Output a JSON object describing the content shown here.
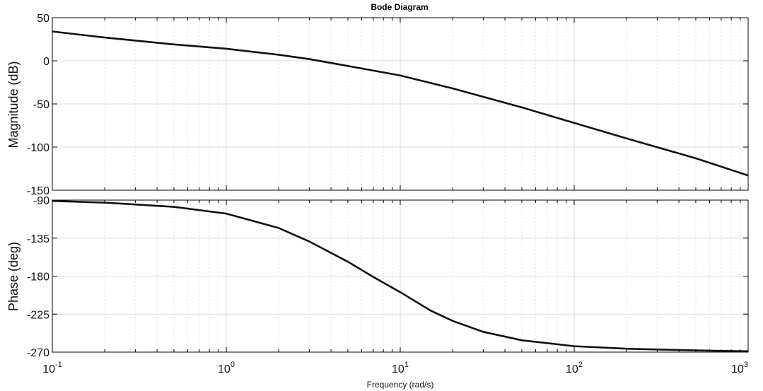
{
  "chart_data": [
    {
      "type": "line",
      "title": "Bode Diagram",
      "ylabel": "Magnitude (dB)",
      "xscale": "log",
      "xlim": [
        0.1,
        1000
      ],
      "ylim": [
        -150,
        50
      ],
      "yticks": [
        "50",
        "0",
        "-50",
        "-100",
        "-150"
      ],
      "grid": true,
      "series": [
        {
          "x": [
            0.1,
            0.2,
            0.5,
            1,
            2,
            3,
            5,
            10,
            20,
            50,
            100,
            200,
            500,
            1000
          ],
          "y": [
            34,
            27,
            19,
            14,
            7,
            2,
            -6,
            -17,
            -32,
            -54,
            -72,
            -90,
            -113,
            -133
          ]
        }
      ]
    },
    {
      "type": "line",
      "ylabel": "Phase (deg)",
      "xlabel": "Frequency  (rad/s)",
      "xscale": "log",
      "xlim": [
        0.1,
        1000
      ],
      "ylim": [
        -270,
        -90
      ],
      "yticks": [
        "-90",
        "-135",
        "-180",
        "-225",
        "-270"
      ],
      "xticks": [
        {
          "base": "10",
          "exp": "-1"
        },
        {
          "base": "10",
          "exp": "0"
        },
        {
          "base": "10",
          "exp": "1"
        },
        {
          "base": "10",
          "exp": "2"
        },
        {
          "base": "10",
          "exp": "3"
        }
      ],
      "grid": true,
      "series": [
        {
          "x": [
            0.1,
            0.2,
            0.5,
            1,
            2,
            3,
            5,
            7,
            10,
            15,
            20,
            30,
            50,
            100,
            200,
            500,
            1000
          ],
          "y": [
            -91,
            -93,
            -98,
            -106,
            -123,
            -139,
            -163,
            -181,
            -199,
            -221,
            -233,
            -246,
            -256,
            -263,
            -266,
            -268,
            -269
          ]
        }
      ]
    }
  ]
}
